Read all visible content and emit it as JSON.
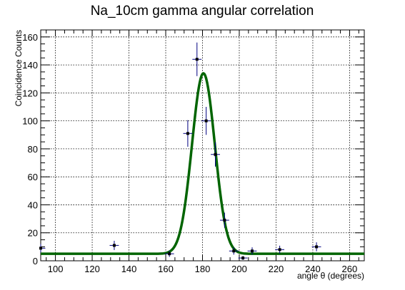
{
  "chart_data": {
    "type": "scatter",
    "title": "Na_10cm gamma angular correlation",
    "xlabel": "angle θ (degrees)",
    "ylabel": "Coincidence Counts",
    "xlim": [
      92,
      268
    ],
    "ylim": [
      0,
      165
    ],
    "xticks": [
      100,
      120,
      140,
      160,
      180,
      200,
      220,
      240,
      260
    ],
    "yticks": [
      0,
      20,
      40,
      60,
      80,
      100,
      120,
      140,
      160
    ],
    "grid": true,
    "series": [
      {
        "style": "points-with-error-bars",
        "color": "#000080",
        "points": [
          {
            "x": 92,
            "y": 9,
            "xerr": 2.5,
            "yerr": 3
          },
          {
            "x": 132,
            "y": 11,
            "xerr": 2.5,
            "yerr": 3.3
          },
          {
            "x": 162,
            "y": 5,
            "xerr": 2.5,
            "yerr": 2.2
          },
          {
            "x": 172,
            "y": 91,
            "xerr": 2.5,
            "yerr": 9.5
          },
          {
            "x": 177,
            "y": 144,
            "xerr": 2.5,
            "yerr": 12
          },
          {
            "x": 182,
            "y": 100,
            "xerr": 2.5,
            "yerr": 10
          },
          {
            "x": 187,
            "y": 76,
            "xerr": 2.5,
            "yerr": 8.7
          },
          {
            "x": 192,
            "y": 29,
            "xerr": 2.5,
            "yerr": 5.4
          },
          {
            "x": 197,
            "y": 7,
            "xerr": 2.5,
            "yerr": 2.6
          },
          {
            "x": 202,
            "y": 2,
            "xerr": 2.5,
            "yerr": 1.4
          },
          {
            "x": 207,
            "y": 7,
            "xerr": 2.5,
            "yerr": 2.6
          },
          {
            "x": 222,
            "y": 8,
            "xerr": 2.5,
            "yerr": 2.8
          },
          {
            "x": 242,
            "y": 10,
            "xerr": 2.5,
            "yerr": 3.2
          }
        ]
      },
      {
        "style": "fit-curve",
        "function": "gaussian",
        "color": "#006400",
        "amplitude": 129,
        "mean": 180.5,
        "sigma": 6.2,
        "baseline": 5,
        "xrange": [
          92,
          268
        ]
      }
    ]
  }
}
